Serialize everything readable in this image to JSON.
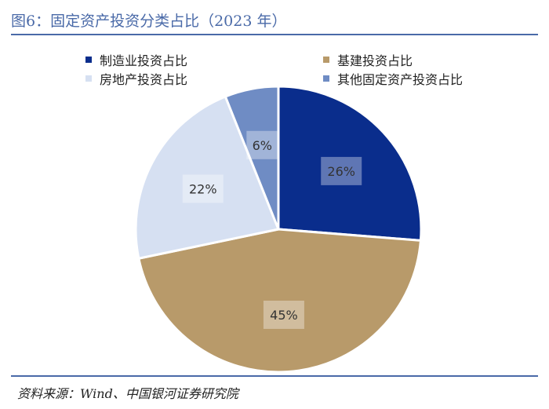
{
  "title": "图6：固定资产投资分类占比（2023 年）",
  "source": "资料来源：Wind、中国银河证券研究院",
  "colors": {
    "accent": "#4a6aa8",
    "manufacturing": "#0a2d8c",
    "infrastructure": "#b89a6a",
    "real_estate": "#d6e0f2",
    "other": "#6f8cc4"
  },
  "chart_data": {
    "type": "pie",
    "title": "",
    "legend_position": "top",
    "slices": [
      {
        "name": "制造业投资占比",
        "value": 26,
        "label": "26%",
        "color": "#0a2d8c"
      },
      {
        "name": "基建投资占比",
        "value": 45,
        "label": "45%",
        "color": "#b89a6a"
      },
      {
        "name": "房地产投资占比",
        "value": 22,
        "label": "22%",
        "color": "#d6e0f2"
      },
      {
        "name": "其他固定资产投资占比",
        "value": 6,
        "label": "6%",
        "color": "#6f8cc4"
      }
    ],
    "legend": [
      {
        "name": "制造业投资占比",
        "color": "#0a2d8c"
      },
      {
        "name": "基建投资占比",
        "color": "#b89a6a"
      },
      {
        "name": "房地产投资占比",
        "color": "#d6e0f2"
      },
      {
        "name": "其他固定资产投资占比",
        "color": "#6f8cc4"
      }
    ]
  }
}
